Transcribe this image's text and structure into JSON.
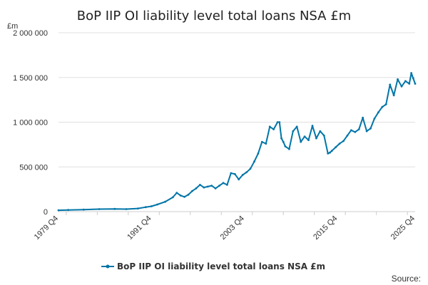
{
  "chart_data": {
    "type": "line",
    "title": "BoP IIP OI liability level total loans NSA £m",
    "y_unit": "£m",
    "ylim": [
      0,
      2000000
    ],
    "y_ticks": [
      0,
      500000,
      1000000,
      1500000,
      2000000
    ],
    "y_tick_labels": [
      "0",
      "500 000",
      "1 000 000",
      "1 500 000",
      "2 000 000"
    ],
    "x_tick_labels": [
      "1979 Q4",
      "1991 Q4",
      "2003 Q4",
      "2015 Q4",
      "2025 Q4"
    ],
    "x_tick_years": [
      1979.75,
      1991.75,
      2003.75,
      2015.75,
      2025.75
    ],
    "xlim": [
      1979.75,
      2025.75
    ],
    "grid": true,
    "legend_position": "bottom",
    "colors": {
      "series": "#0075a8",
      "grid": "#e0e0e0",
      "axis": "#cccccc"
    },
    "source_label": "Source:",
    "series": [
      {
        "name": "BoP IIP OI liability level total loans NSA £m",
        "x": [
          1979.75,
          1981.0,
          1983.0,
          1985.0,
          1987.0,
          1988.5,
          1990.0,
          1991.0,
          1991.75,
          1992.5,
          1993.5,
          1994.5,
          1995.0,
          1995.5,
          1996.0,
          1996.5,
          1997.0,
          1997.5,
          1998.0,
          1998.5,
          1999.0,
          1999.5,
          2000.0,
          2000.5,
          2001.0,
          2001.5,
          2002.0,
          2002.5,
          2003.0,
          2003.5,
          2004.0,
          2004.5,
          2005.0,
          2005.5,
          2006.0,
          2006.5,
          2007.0,
          2007.5,
          2008.0,
          2008.25,
          2008.5,
          2008.75,
          2009.0,
          2009.5,
          2010.0,
          2010.5,
          2011.0,
          2011.5,
          2012.0,
          2012.5,
          2013.0,
          2013.5,
          2014.0,
          2014.5,
          2014.75,
          2015.0,
          2015.5,
          2016.0,
          2016.5,
          2017.0,
          2017.5,
          2018.0,
          2018.5,
          2019.0,
          2019.5,
          2020.0,
          2020.5,
          2021.0,
          2021.5,
          2022.0,
          2022.5,
          2023.0,
          2023.5,
          2024.0,
          2024.5,
          2025.0,
          2025.25,
          2025.5,
          2025.75
        ],
        "values": [
          15000,
          18000,
          22000,
          28000,
          30000,
          28000,
          35000,
          50000,
          60000,
          80000,
          110000,
          160000,
          210000,
          180000,
          165000,
          190000,
          230000,
          260000,
          300000,
          270000,
          280000,
          290000,
          260000,
          290000,
          320000,
          300000,
          430000,
          420000,
          360000,
          410000,
          440000,
          480000,
          560000,
          650000,
          780000,
          760000,
          950000,
          920000,
          1000000,
          1000000,
          820000,
          780000,
          730000,
          700000,
          900000,
          950000,
          780000,
          840000,
          800000,
          960000,
          820000,
          900000,
          850000,
          650000,
          660000,
          680000,
          720000,
          760000,
          790000,
          850000,
          910000,
          890000,
          920000,
          1050000,
          900000,
          930000,
          1040000,
          1110000,
          1170000,
          1200000,
          1420000,
          1300000,
          1480000,
          1400000,
          1460000,
          1430000,
          1550000,
          1490000,
          1430000
        ]
      }
    ]
  }
}
